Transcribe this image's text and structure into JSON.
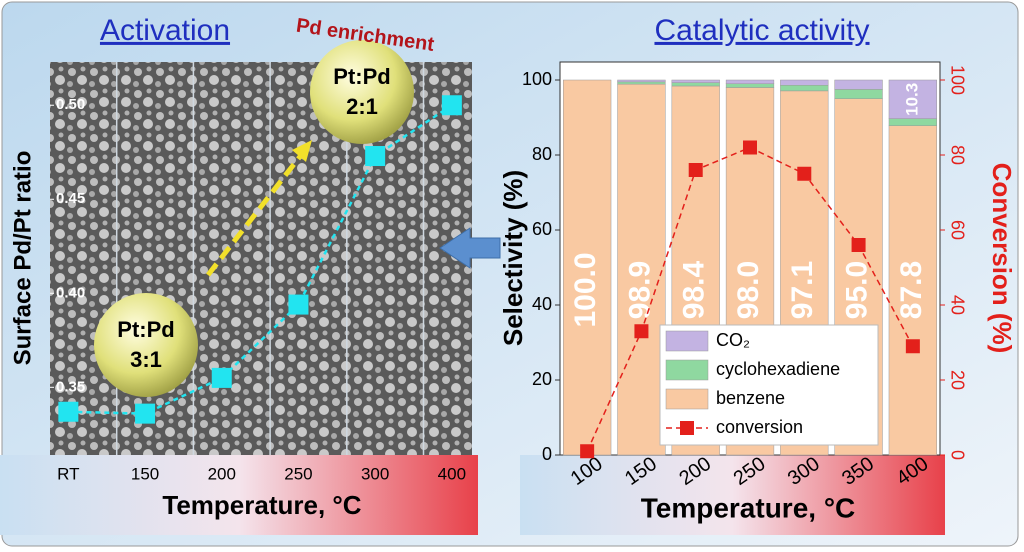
{
  "chart_data": [
    {
      "type": "line",
      "title": "Activation",
      "ylabel": "Surface Pd/Pt ratio",
      "xlabel": "Temperature, °C",
      "categories": [
        "RT",
        "150",
        "200",
        "250",
        "300",
        "400"
      ],
      "values": [
        0.337,
        0.336,
        0.355,
        0.394,
        0.473,
        0.5
      ],
      "color": "#22e4f0",
      "ylim": [
        0.314,
        0.523
      ],
      "yticks": [
        {
          "value": 0.35,
          "label": "0.35"
        },
        {
          "value": 0.4,
          "label": "0.40"
        },
        {
          "value": 0.45,
          "label": "0.45"
        },
        {
          "value": 0.5,
          "label": "0.50"
        }
      ],
      "annotations": [
        [
          "Pt:Pd",
          "3:1"
        ],
        [
          "Pt:Pd",
          "2:1"
        ],
        "Pd enrichment"
      ]
    },
    {
      "type": "bar",
      "stacked": true,
      "title": "Catalytic activity",
      "xlabel": "Temperature, °C",
      "ylabel": "Selectivity (%)",
      "y2label": "Conversion (%)",
      "categories": [
        "100",
        "150",
        "200",
        "250",
        "300",
        "350",
        "400"
      ],
      "series": [
        {
          "name": "benzene",
          "color": "#f9c9a2",
          "values": [
            100.0,
            98.9,
            98.4,
            98.0,
            97.1,
            95.0,
            87.8
          ],
          "value_labels": [
            "100.0",
            "98.9",
            "98.4",
            "98.0",
            "97.1",
            "95.0",
            "87.8"
          ]
        },
        {
          "name": "cyclohexadiene",
          "color": "#8fd8a0",
          "values": [
            0,
            0.6,
            0.9,
            1.0,
            1.5,
            2.5,
            1.9
          ]
        },
        {
          "name": "CO₂",
          "color": "#c3b3e2",
          "values": [
            0,
            0.5,
            0.7,
            1.0,
            1.4,
            2.5,
            10.3
          ],
          "value_labels": [
            null,
            null,
            null,
            null,
            null,
            null,
            "10.3"
          ]
        },
        {
          "name": "conversion",
          "type": "line",
          "axis": "y2",
          "color": "#e3201b",
          "values": [
            1,
            33,
            76,
            82,
            75,
            56,
            29
          ]
        }
      ],
      "ylim": [
        0,
        100
      ],
      "yticks": [
        0,
        20,
        40,
        60,
        80,
        100
      ],
      "y2lim": [
        0,
        100
      ],
      "y2ticks": [
        0,
        20,
        40,
        60,
        80,
        100
      ],
      "legend": "lower center"
    }
  ]
}
